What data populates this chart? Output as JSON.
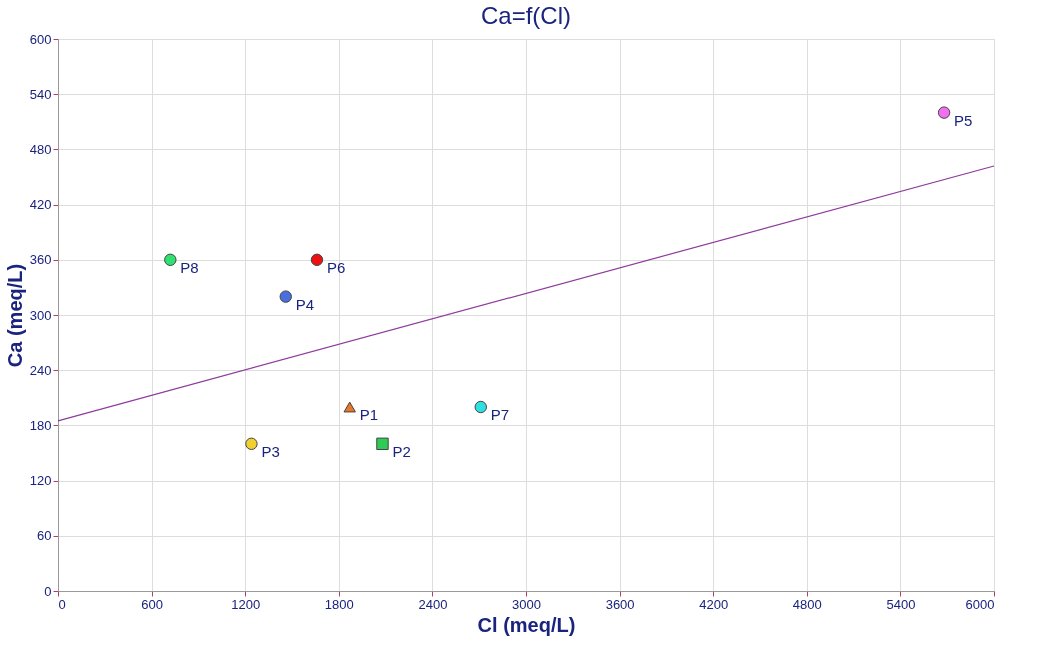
{
  "chart_data": {
    "type": "scatter",
    "title": "Ca=f(Cl)",
    "xlabel": "Cl (meq/L)",
    "ylabel": "Ca (meq/L)",
    "xlim": [
      0,
      6000
    ],
    "xticks": [
      0,
      600,
      1200,
      1800,
      2400,
      3000,
      3600,
      4200,
      4800,
      5400,
      6000
    ],
    "ylim": [
      0,
      600
    ],
    "yticks": [
      0,
      60,
      120,
      180,
      240,
      300,
      360,
      420,
      480,
      540,
      600
    ],
    "grid": true,
    "series": [
      {
        "name": "P1",
        "color": "#e8772a",
        "marker": "triangle",
        "x": [
          1870
        ],
        "values": [
          200
        ]
      },
      {
        "name": "P2",
        "color": "#2ecc55",
        "marker": "square",
        "x": [
          2080
        ],
        "values": [
          160
        ]
      },
      {
        "name": "P3",
        "color": "#f0d030",
        "marker": "circle",
        "x": [
          1240
        ],
        "values": [
          160
        ]
      },
      {
        "name": "P4",
        "color": "#4a70e0",
        "marker": "circle",
        "x": [
          1460
        ],
        "values": [
          320
        ]
      },
      {
        "name": "P5",
        "color": "#f070f0",
        "marker": "circle",
        "x": [
          5680
        ],
        "values": [
          520
        ]
      },
      {
        "name": "P6",
        "color": "#ee1111",
        "marker": "circle",
        "x": [
          1660
        ],
        "values": [
          360
        ]
      },
      {
        "name": "P7",
        "color": "#30e0e0",
        "marker": "circle",
        "x": [
          2710
        ],
        "values": [
          200
        ]
      },
      {
        "name": "P8",
        "color": "#30e070",
        "marker": "circle",
        "x": [
          720
        ],
        "values": [
          360
        ]
      },
      {
        "type": "line",
        "color": "#8e3a9c",
        "line_style": "solid",
        "x": [
          0,
          6000
        ],
        "values": [
          185,
          462
        ]
      }
    ]
  }
}
